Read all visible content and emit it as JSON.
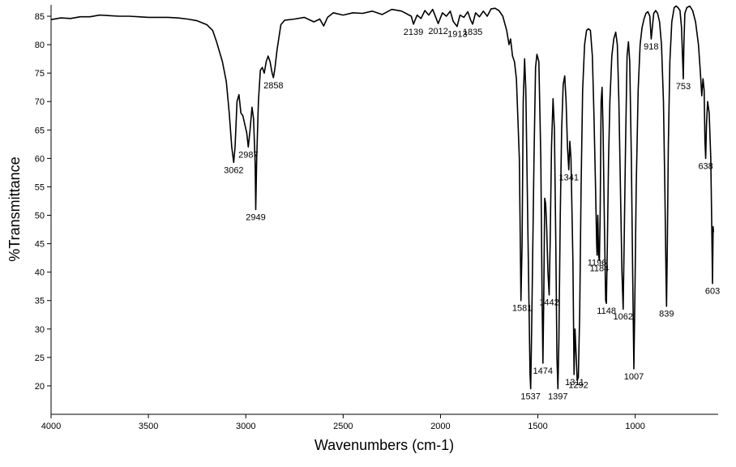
{
  "chart_data": {
    "type": "line",
    "xlabel": "Wavenumbers (cm-1)",
    "ylabel": "%Transmittance",
    "xlim": [
      4000,
      574
    ],
    "ylim": [
      15,
      87
    ],
    "x_reversed": true,
    "grid": false,
    "line_color": "#000000",
    "x_ticks": [
      4000,
      3500,
      3000,
      2500,
      2000,
      1500,
      1000
    ],
    "y_ticks": [
      20,
      25,
      30,
      35,
      40,
      45,
      50,
      55,
      60,
      65,
      70,
      75,
      80,
      85
    ],
    "x_tick_labels": [
      "4000",
      "3500",
      "3000",
      "2500",
      "2000",
      "1500",
      "1000"
    ],
    "y_tick_labels": [
      "20",
      "25",
      "30",
      "35",
      "40",
      "45",
      "50",
      "55",
      "60",
      "65",
      "70",
      "75",
      "80",
      "85"
    ],
    "series": [
      {
        "points": [
          [
            4000,
            84.4
          ],
          [
            3950,
            84.7
          ],
          [
            3900,
            84.6
          ],
          [
            3850,
            84.9
          ],
          [
            3800,
            84.9
          ],
          [
            3750,
            85.2
          ],
          [
            3700,
            85.1
          ],
          [
            3650,
            85.0
          ],
          [
            3600,
            85.0
          ],
          [
            3550,
            84.9
          ],
          [
            3500,
            84.8
          ],
          [
            3450,
            84.8
          ],
          [
            3400,
            84.8
          ],
          [
            3350,
            84.7
          ],
          [
            3300,
            84.5
          ],
          [
            3250,
            84.2
          ],
          [
            3200,
            83.5
          ],
          [
            3170,
            82.5
          ],
          [
            3150,
            80.5
          ],
          [
            3120,
            77.0
          ],
          [
            3100,
            73.5
          ],
          [
            3085,
            68.0
          ],
          [
            3072,
            62.0
          ],
          [
            3062,
            59.3
          ],
          [
            3055,
            62.0
          ],
          [
            3045,
            70.0
          ],
          [
            3035,
            71.2
          ],
          [
            3025,
            68.0
          ],
          [
            3015,
            67.5
          ],
          [
            3005,
            66.0
          ],
          [
            2995,
            64.5
          ],
          [
            2987,
            62.0
          ],
          [
            2978,
            65.0
          ],
          [
            2968,
            69.0
          ],
          [
            2960,
            67.0
          ],
          [
            2952,
            59.0
          ],
          [
            2949,
            51.0
          ],
          [
            2944,
            60.0
          ],
          [
            2935,
            70.0
          ],
          [
            2925,
            75.5
          ],
          [
            2915,
            76.0
          ],
          [
            2905,
            75.0
          ],
          [
            2895,
            77.0
          ],
          [
            2885,
            78.0
          ],
          [
            2875,
            77.0
          ],
          [
            2865,
            75.0
          ],
          [
            2858,
            74.2
          ],
          [
            2850,
            76.0
          ],
          [
            2840,
            79.0
          ],
          [
            2820,
            83.5
          ],
          [
            2800,
            84.3
          ],
          [
            2750,
            84.5
          ],
          [
            2700,
            84.8
          ],
          [
            2650,
            84.0
          ],
          [
            2620,
            84.5
          ],
          [
            2600,
            83.3
          ],
          [
            2580,
            84.8
          ],
          [
            2550,
            85.6
          ],
          [
            2500,
            85.2
          ],
          [
            2450,
            85.6
          ],
          [
            2400,
            85.5
          ],
          [
            2350,
            85.9
          ],
          [
            2300,
            85.3
          ],
          [
            2250,
            86.2
          ],
          [
            2200,
            85.9
          ],
          [
            2150,
            85.0
          ],
          [
            2139,
            83.6
          ],
          [
            2120,
            85.2
          ],
          [
            2100,
            84.6
          ],
          [
            2080,
            86.0
          ],
          [
            2060,
            85.2
          ],
          [
            2040,
            86.2
          ],
          [
            2012,
            83.7
          ],
          [
            1990,
            85.6
          ],
          [
            1970,
            85.0
          ],
          [
            1950,
            85.9
          ],
          [
            1935,
            84.1
          ],
          [
            1915,
            83.2
          ],
          [
            1900,
            85.2
          ],
          [
            1880,
            84.8
          ],
          [
            1860,
            85.8
          ],
          [
            1845,
            84.3
          ],
          [
            1835,
            83.6
          ],
          [
            1820,
            85.6
          ],
          [
            1800,
            84.9
          ],
          [
            1780,
            85.9
          ],
          [
            1760,
            85.0
          ],
          [
            1740,
            86.3
          ],
          [
            1720,
            86.4
          ],
          [
            1700,
            86.0
          ],
          [
            1680,
            85.0
          ],
          [
            1660,
            82.5
          ],
          [
            1648,
            80.0
          ],
          [
            1640,
            81.0
          ],
          [
            1630,
            78.0
          ],
          [
            1620,
            77.0
          ],
          [
            1610,
            74.0
          ],
          [
            1595,
            60.0
          ],
          [
            1587,
            35.0
          ],
          [
            1581,
            45.0
          ],
          [
            1575,
            70.0
          ],
          [
            1568,
            77.5
          ],
          [
            1562,
            72.0
          ],
          [
            1550,
            45.0
          ],
          [
            1540,
            22.0
          ],
          [
            1537,
            19.5
          ],
          [
            1532,
            30.0
          ],
          [
            1520,
            60.0
          ],
          [
            1512,
            76.0
          ],
          [
            1505,
            78.3
          ],
          [
            1495,
            77.0
          ],
          [
            1485,
            60.0
          ],
          [
            1478,
            35.0
          ],
          [
            1474,
            24.0
          ],
          [
            1470,
            35.0
          ],
          [
            1465,
            53.0
          ],
          [
            1460,
            52.0
          ],
          [
            1455,
            48.0
          ],
          [
            1448,
            40.0
          ],
          [
            1442,
            36.0
          ],
          [
            1437,
            45.0
          ],
          [
            1430,
            62.0
          ],
          [
            1422,
            70.5
          ],
          [
            1415,
            65.0
          ],
          [
            1408,
            45.0
          ],
          [
            1402,
            25.0
          ],
          [
            1397,
            19.5
          ],
          [
            1392,
            28.0
          ],
          [
            1385,
            50.0
          ],
          [
            1378,
            65.0
          ],
          [
            1370,
            73.0
          ],
          [
            1362,
            74.5
          ],
          [
            1355,
            70.0
          ],
          [
            1348,
            62.0
          ],
          [
            1341,
            58.0
          ],
          [
            1336,
            63.0
          ],
          [
            1330,
            60.0
          ],
          [
            1320,
            42.0
          ],
          [
            1314,
            22.0
          ],
          [
            1309,
            30.0
          ],
          [
            1304,
            26.0
          ],
          [
            1298,
            21.0
          ],
          [
            1292,
            21.5
          ],
          [
            1285,
            33.0
          ],
          [
            1278,
            55.0
          ],
          [
            1270,
            72.0
          ],
          [
            1260,
            80.0
          ],
          [
            1250,
            82.5
          ],
          [
            1240,
            82.8
          ],
          [
            1230,
            82.5
          ],
          [
            1220,
            78.0
          ],
          [
            1212,
            68.0
          ],
          [
            1204,
            55.0
          ],
          [
            1198,
            45.0
          ],
          [
            1196,
            43.0
          ],
          [
            1192,
            50.0
          ],
          [
            1188,
            43.0
          ],
          [
            1184,
            42.0
          ],
          [
            1180,
            50.0
          ],
          [
            1175,
            70.0
          ],
          [
            1170,
            72.5
          ],
          [
            1165,
            65.0
          ],
          [
            1158,
            48.0
          ],
          [
            1152,
            35.0
          ],
          [
            1148,
            34.5
          ],
          [
            1143,
            45.0
          ],
          [
            1137,
            60.0
          ],
          [
            1130,
            70.0
          ],
          [
            1120,
            78.0
          ],
          [
            1110,
            81.0
          ],
          [
            1100,
            82.2
          ],
          [
            1092,
            80.0
          ],
          [
            1084,
            70.0
          ],
          [
            1076,
            55.0
          ],
          [
            1068,
            40.0
          ],
          [
            1062,
            33.5
          ],
          [
            1057,
            45.0
          ],
          [
            1050,
            62.0
          ],
          [
            1042,
            78.0
          ],
          [
            1035,
            80.5
          ],
          [
            1028,
            77.0
          ],
          [
            1020,
            60.0
          ],
          [
            1013,
            40.0
          ],
          [
            1007,
            23.0
          ],
          [
            1002,
            35.0
          ],
          [
            995,
            55.0
          ],
          [
            985,
            72.0
          ],
          [
            975,
            80.0
          ],
          [
            965,
            83.0
          ],
          [
            955,
            84.5
          ],
          [
            945,
            85.5
          ],
          [
            935,
            85.8
          ],
          [
            925,
            85.0
          ],
          [
            918,
            81.0
          ],
          [
            912,
            83.0
          ],
          [
            905,
            85.5
          ],
          [
            895,
            86.0
          ],
          [
            885,
            85.5
          ],
          [
            875,
            84.0
          ],
          [
            865,
            80.0
          ],
          [
            855,
            70.0
          ],
          [
            848,
            55.0
          ],
          [
            842,
            40.0
          ],
          [
            839,
            34.0
          ],
          [
            835,
            45.0
          ],
          [
            830,
            62.0
          ],
          [
            822,
            77.0
          ],
          [
            812,
            84.0
          ],
          [
            800,
            86.5
          ],
          [
            790,
            86.8
          ],
          [
            780,
            86.5
          ],
          [
            770,
            86.0
          ],
          [
            762,
            83.0
          ],
          [
            757,
            78.0
          ],
          [
            753,
            74.0
          ],
          [
            750,
            80.0
          ],
          [
            745,
            85.5
          ],
          [
            735,
            86.5
          ],
          [
            720,
            86.8
          ],
          [
            705,
            86.0
          ],
          [
            690,
            84.0
          ],
          [
            675,
            80.0
          ],
          [
            665,
            75.0
          ],
          [
            658,
            71.0
          ],
          [
            652,
            74.0
          ],
          [
            646,
            72.0
          ],
          [
            642,
            63.0
          ],
          [
            638,
            60.0
          ],
          [
            634,
            66.0
          ],
          [
            628,
            70.0
          ],
          [
            620,
            68.0
          ],
          [
            612,
            60.0
          ],
          [
            607,
            48.0
          ],
          [
            603,
            38.0
          ],
          [
            600,
            48.0
          ],
          [
            598,
            47.0
          ]
        ]
      }
    ],
    "peak_labels": [
      {
        "text": "3062",
        "x": 3062,
        "y": 59.3
      },
      {
        "text": "2987",
        "x": 2987,
        "y": 62.0
      },
      {
        "text": "2949",
        "x": 2949,
        "y": 51.0
      },
      {
        "text": "2858",
        "x": 2858,
        "y": 74.2
      },
      {
        "text": "2139",
        "x": 2139,
        "y": 83.6
      },
      {
        "text": "2012",
        "x": 2012,
        "y": 83.7
      },
      {
        "text": "1913",
        "x": 1913,
        "y": 83.2
      },
      {
        "text": "1835",
        "x": 1835,
        "y": 83.6
      },
      {
        "text": "1581",
        "x": 1581,
        "y": 35.0
      },
      {
        "text": "1537",
        "x": 1537,
        "y": 19.5
      },
      {
        "text": "1474",
        "x": 1474,
        "y": 24.0
      },
      {
        "text": "1442",
        "x": 1442,
        "y": 36.0
      },
      {
        "text": "1397",
        "x": 1397,
        "y": 19.5
      },
      {
        "text": "1341",
        "x": 1341,
        "y": 58.0
      },
      {
        "text": "1311",
        "x": 1311,
        "y": 22.0
      },
      {
        "text": "1292",
        "x": 1292,
        "y": 21.5
      },
      {
        "text": "1196",
        "x": 1196,
        "y": 43.0
      },
      {
        "text": "1184",
        "x": 1184,
        "y": 42.0
      },
      {
        "text": "1148",
        "x": 1148,
        "y": 34.5
      },
      {
        "text": "1062",
        "x": 1062,
        "y": 33.5
      },
      {
        "text": "1007",
        "x": 1007,
        "y": 23.0
      },
      {
        "text": "918",
        "x": 918,
        "y": 81.0
      },
      {
        "text": "839",
        "x": 839,
        "y": 34.0
      },
      {
        "text": "753",
        "x": 753,
        "y": 74.0
      },
      {
        "text": "638",
        "x": 638,
        "y": 60.0
      },
      {
        "text": "603",
        "x": 603,
        "y": 38.0
      }
    ]
  }
}
